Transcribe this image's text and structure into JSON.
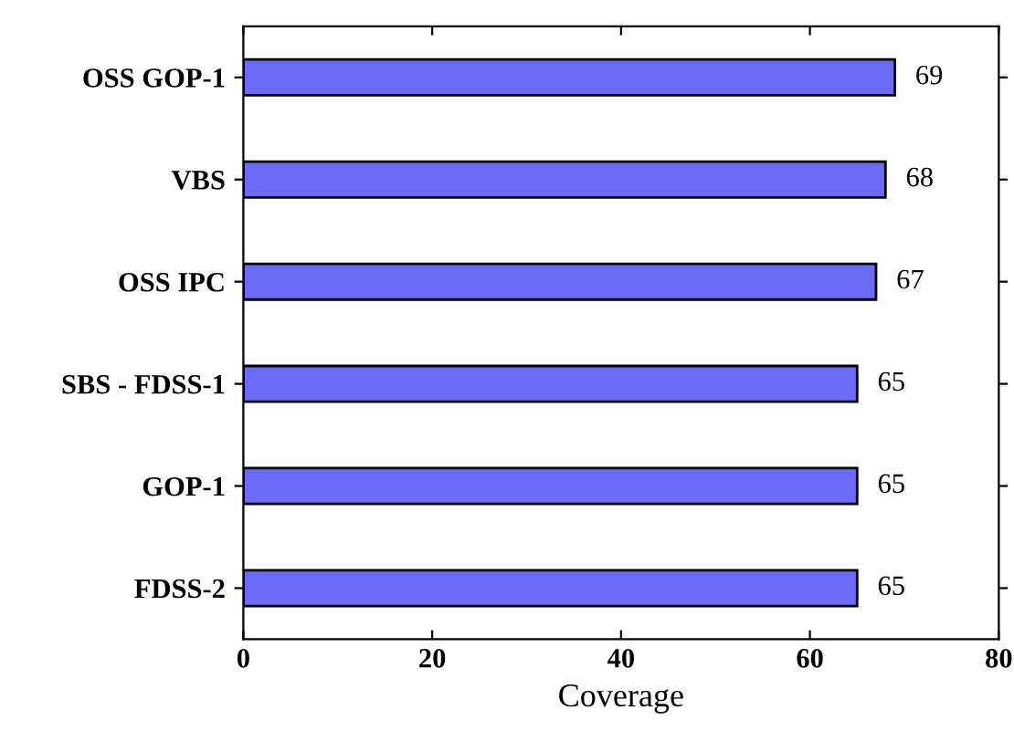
{
  "chart_data": {
    "type": "bar",
    "orientation": "horizontal",
    "xlabel": "Coverage",
    "categories": [
      "OSS GOP-1",
      "VBS",
      "OSS IPC",
      "SBS - FDSS-1",
      "GOP-1",
      "FDSS-2"
    ],
    "values": [
      69,
      68,
      67,
      65,
      65,
      65
    ],
    "color": "#6b6bf7",
    "xlim": [
      0,
      80
    ],
    "xticks": [
      0,
      20,
      40,
      60,
      80
    ],
    "grid": false,
    "data_labels": true
  }
}
